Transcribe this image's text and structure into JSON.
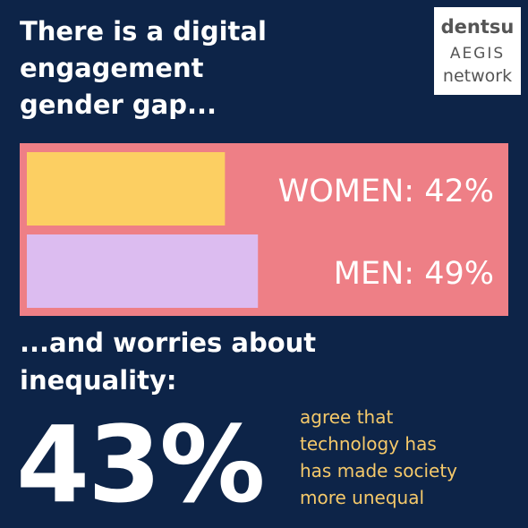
{
  "title_lines": [
    "There is a digital",
    "engagement",
    "gender gap..."
  ],
  "logo": {
    "line1": "dentsu",
    "line2": "AEGIS",
    "line3": "network"
  },
  "chart_data": {
    "type": "bar",
    "orientation": "horizontal",
    "values": [
      42,
      49
    ],
    "value_labels": [
      "WOMEN: 42%",
      "MEN: 49%"
    ],
    "colors": [
      "#fccf62",
      "#dcbcf0"
    ],
    "xlim": [
      0,
      100
    ]
  },
  "subtitle_lines": [
    "...and worries about",
    "inequality:"
  ],
  "stat": {
    "value_text": "43%",
    "caption_lines": [
      "agree that",
      "technology has",
      "has made society",
      "more unequal"
    ]
  }
}
